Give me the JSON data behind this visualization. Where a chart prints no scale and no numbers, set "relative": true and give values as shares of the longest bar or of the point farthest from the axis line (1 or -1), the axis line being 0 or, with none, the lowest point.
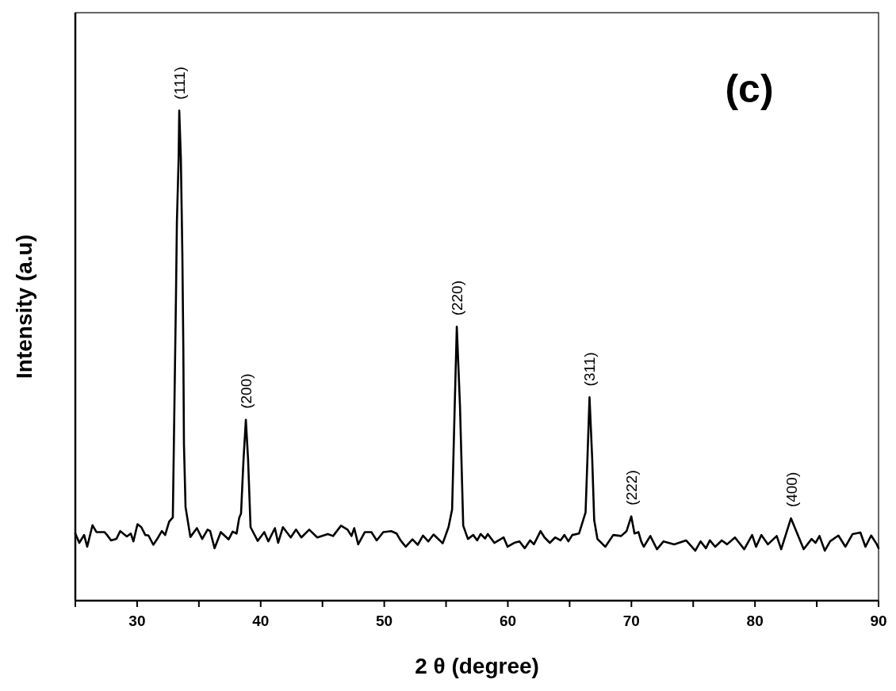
{
  "chart_data": {
    "type": "line",
    "xlabel": "2 θ (degree)",
    "ylabel": "Intensity (a.u)",
    "relative": true,
    "xlim": [
      25,
      90
    ],
    "xticks": [
      {
        "value": 25,
        "label": null
      },
      30,
      {
        "value": 35,
        "label": null
      },
      40,
      {
        "value": 45,
        "label": null
      },
      50,
      {
        "value": 55,
        "label": null
      },
      60,
      {
        "value": 65,
        "label": null
      },
      70,
      {
        "value": 75,
        "label": null
      },
      80,
      {
        "value": 85,
        "label": null
      },
      90
    ],
    "x": [
      25.0,
      25.32,
      25.71,
      25.96,
      26.39,
      26.71,
      27.35,
      27.57,
      27.89,
      28.32,
      28.63,
      29.17,
      29.49,
      29.7,
      30.03,
      30.34,
      30.66,
      30.92,
      31.31,
      31.63,
      32.0,
      32.27,
      32.59,
      32.89,
      33.15,
      33.22,
      33.36,
      33.41,
      33.54,
      33.66,
      33.74,
      33.79,
      33.92,
      34.31,
      34.84,
      35.27,
      35.7,
      35.91,
      36.27,
      36.77,
      37.41,
      37.73,
      38.05,
      38.26,
      38.41,
      38.61,
      38.8,
      38.98,
      39.18,
      39.76,
      40.29,
      40.62,
      41.15,
      41.41,
      41.8,
      42.43,
      42.86,
      43.29,
      43.93,
      44.58,
      45.43,
      45.86,
      46.5,
      47.03,
      47.35,
      47.57,
      47.89,
      48.43,
      48.96,
      49.39,
      49.92,
      50.56,
      51.0,
      51.32,
      51.74,
      52.28,
      52.71,
      53.13,
      53.56,
      53.99,
      54.73,
      55.2,
      55.49,
      55.7,
      55.87,
      56.13,
      56.39,
      56.77,
      57.2,
      57.52,
      57.8,
      58.16,
      58.38,
      58.91,
      59.66,
      59.98,
      60.51,
      60.94,
      61.37,
      61.8,
      62.11,
      62.65,
      62.97,
      63.4,
      63.83,
      64.26,
      64.58,
      64.9,
      65.22,
      65.76,
      66.29,
      66.44,
      66.61,
      66.83,
      66.99,
      67.25,
      67.89,
      68.53,
      69.17,
      69.61,
      69.99,
      70.25,
      70.57,
      70.79,
      71.0,
      71.53,
      72.07,
      72.6,
      73.46,
      74.42,
      75.17,
      75.6,
      76.03,
      76.35,
      76.78,
      77.31,
      77.74,
      78.38,
      79.13,
      79.77,
      80.09,
      80.52,
      81.05,
      81.76,
      82.12,
      82.91,
      83.94,
      84.58,
      84.9,
      85.22,
      85.65,
      86.08,
      86.75,
      87.32,
      87.9,
      88.53,
      88.94,
      89.4,
      89.86,
      90.0
    ],
    "series": [
      {
        "color": "#000000",
        "values": [
          0.137,
          0.118,
          0.134,
          0.11,
          0.154,
          0.14,
          0.14,
          0.134,
          0.123,
          0.126,
          0.142,
          0.131,
          0.137,
          0.121,
          0.156,
          0.15,
          0.134,
          0.133,
          0.114,
          0.126,
          0.142,
          0.134,
          0.161,
          0.17,
          0.631,
          0.773,
          0.903,
          1.0,
          0.903,
          0.709,
          0.515,
          0.32,
          0.191,
          0.13,
          0.148,
          0.126,
          0.145,
          0.142,
          0.107,
          0.14,
          0.125,
          0.141,
          0.137,
          0.169,
          0.178,
          0.288,
          0.369,
          0.288,
          0.15,
          0.122,
          0.14,
          0.121,
          0.148,
          0.118,
          0.15,
          0.129,
          0.145,
          0.129,
          0.145,
          0.129,
          0.136,
          0.132,
          0.153,
          0.145,
          0.132,
          0.148,
          0.115,
          0.14,
          0.14,
          0.123,
          0.14,
          0.142,
          0.137,
          0.123,
          0.11,
          0.125,
          0.114,
          0.133,
          0.121,
          0.135,
          0.117,
          0.15,
          0.186,
          0.396,
          0.559,
          0.396,
          0.153,
          0.126,
          0.134,
          0.123,
          0.136,
          0.127,
          0.136,
          0.118,
          0.129,
          0.11,
          0.118,
          0.121,
          0.107,
          0.123,
          0.115,
          0.142,
          0.129,
          0.118,
          0.129,
          0.123,
          0.134,
          0.121,
          0.134,
          0.137,
          0.18,
          0.288,
          0.415,
          0.288,
          0.164,
          0.126,
          0.11,
          0.134,
          0.132,
          0.142,
          0.172,
          0.137,
          0.14,
          0.121,
          0.11,
          0.132,
          0.105,
          0.121,
          0.115,
          0.123,
          0.102,
          0.121,
          0.107,
          0.123,
          0.11,
          0.123,
          0.115,
          0.129,
          0.105,
          0.134,
          0.11,
          0.134,
          0.115,
          0.132,
          0.105,
          0.168,
          0.105,
          0.126,
          0.118,
          0.132,
          0.102,
          0.121,
          0.133,
          0.11,
          0.136,
          0.139,
          0.11,
          0.133,
          0.115,
          0.107
        ]
      }
    ],
    "annotations": [
      {
        "text": "(111)",
        "x": 33.41,
        "y": 1.0
      },
      {
        "text": "(200)",
        "x": 38.8,
        "y": 0.369
      },
      {
        "text": "(220)",
        "x": 55.87,
        "y": 0.559
      },
      {
        "text": "(311)",
        "x": 66.61,
        "y": 0.415
      },
      {
        "text": "(222)",
        "x": 69.99,
        "y": 0.172
      },
      {
        "text": "(400)",
        "x": 82.91,
        "y": 0.168
      },
      "(c)"
    ]
  }
}
